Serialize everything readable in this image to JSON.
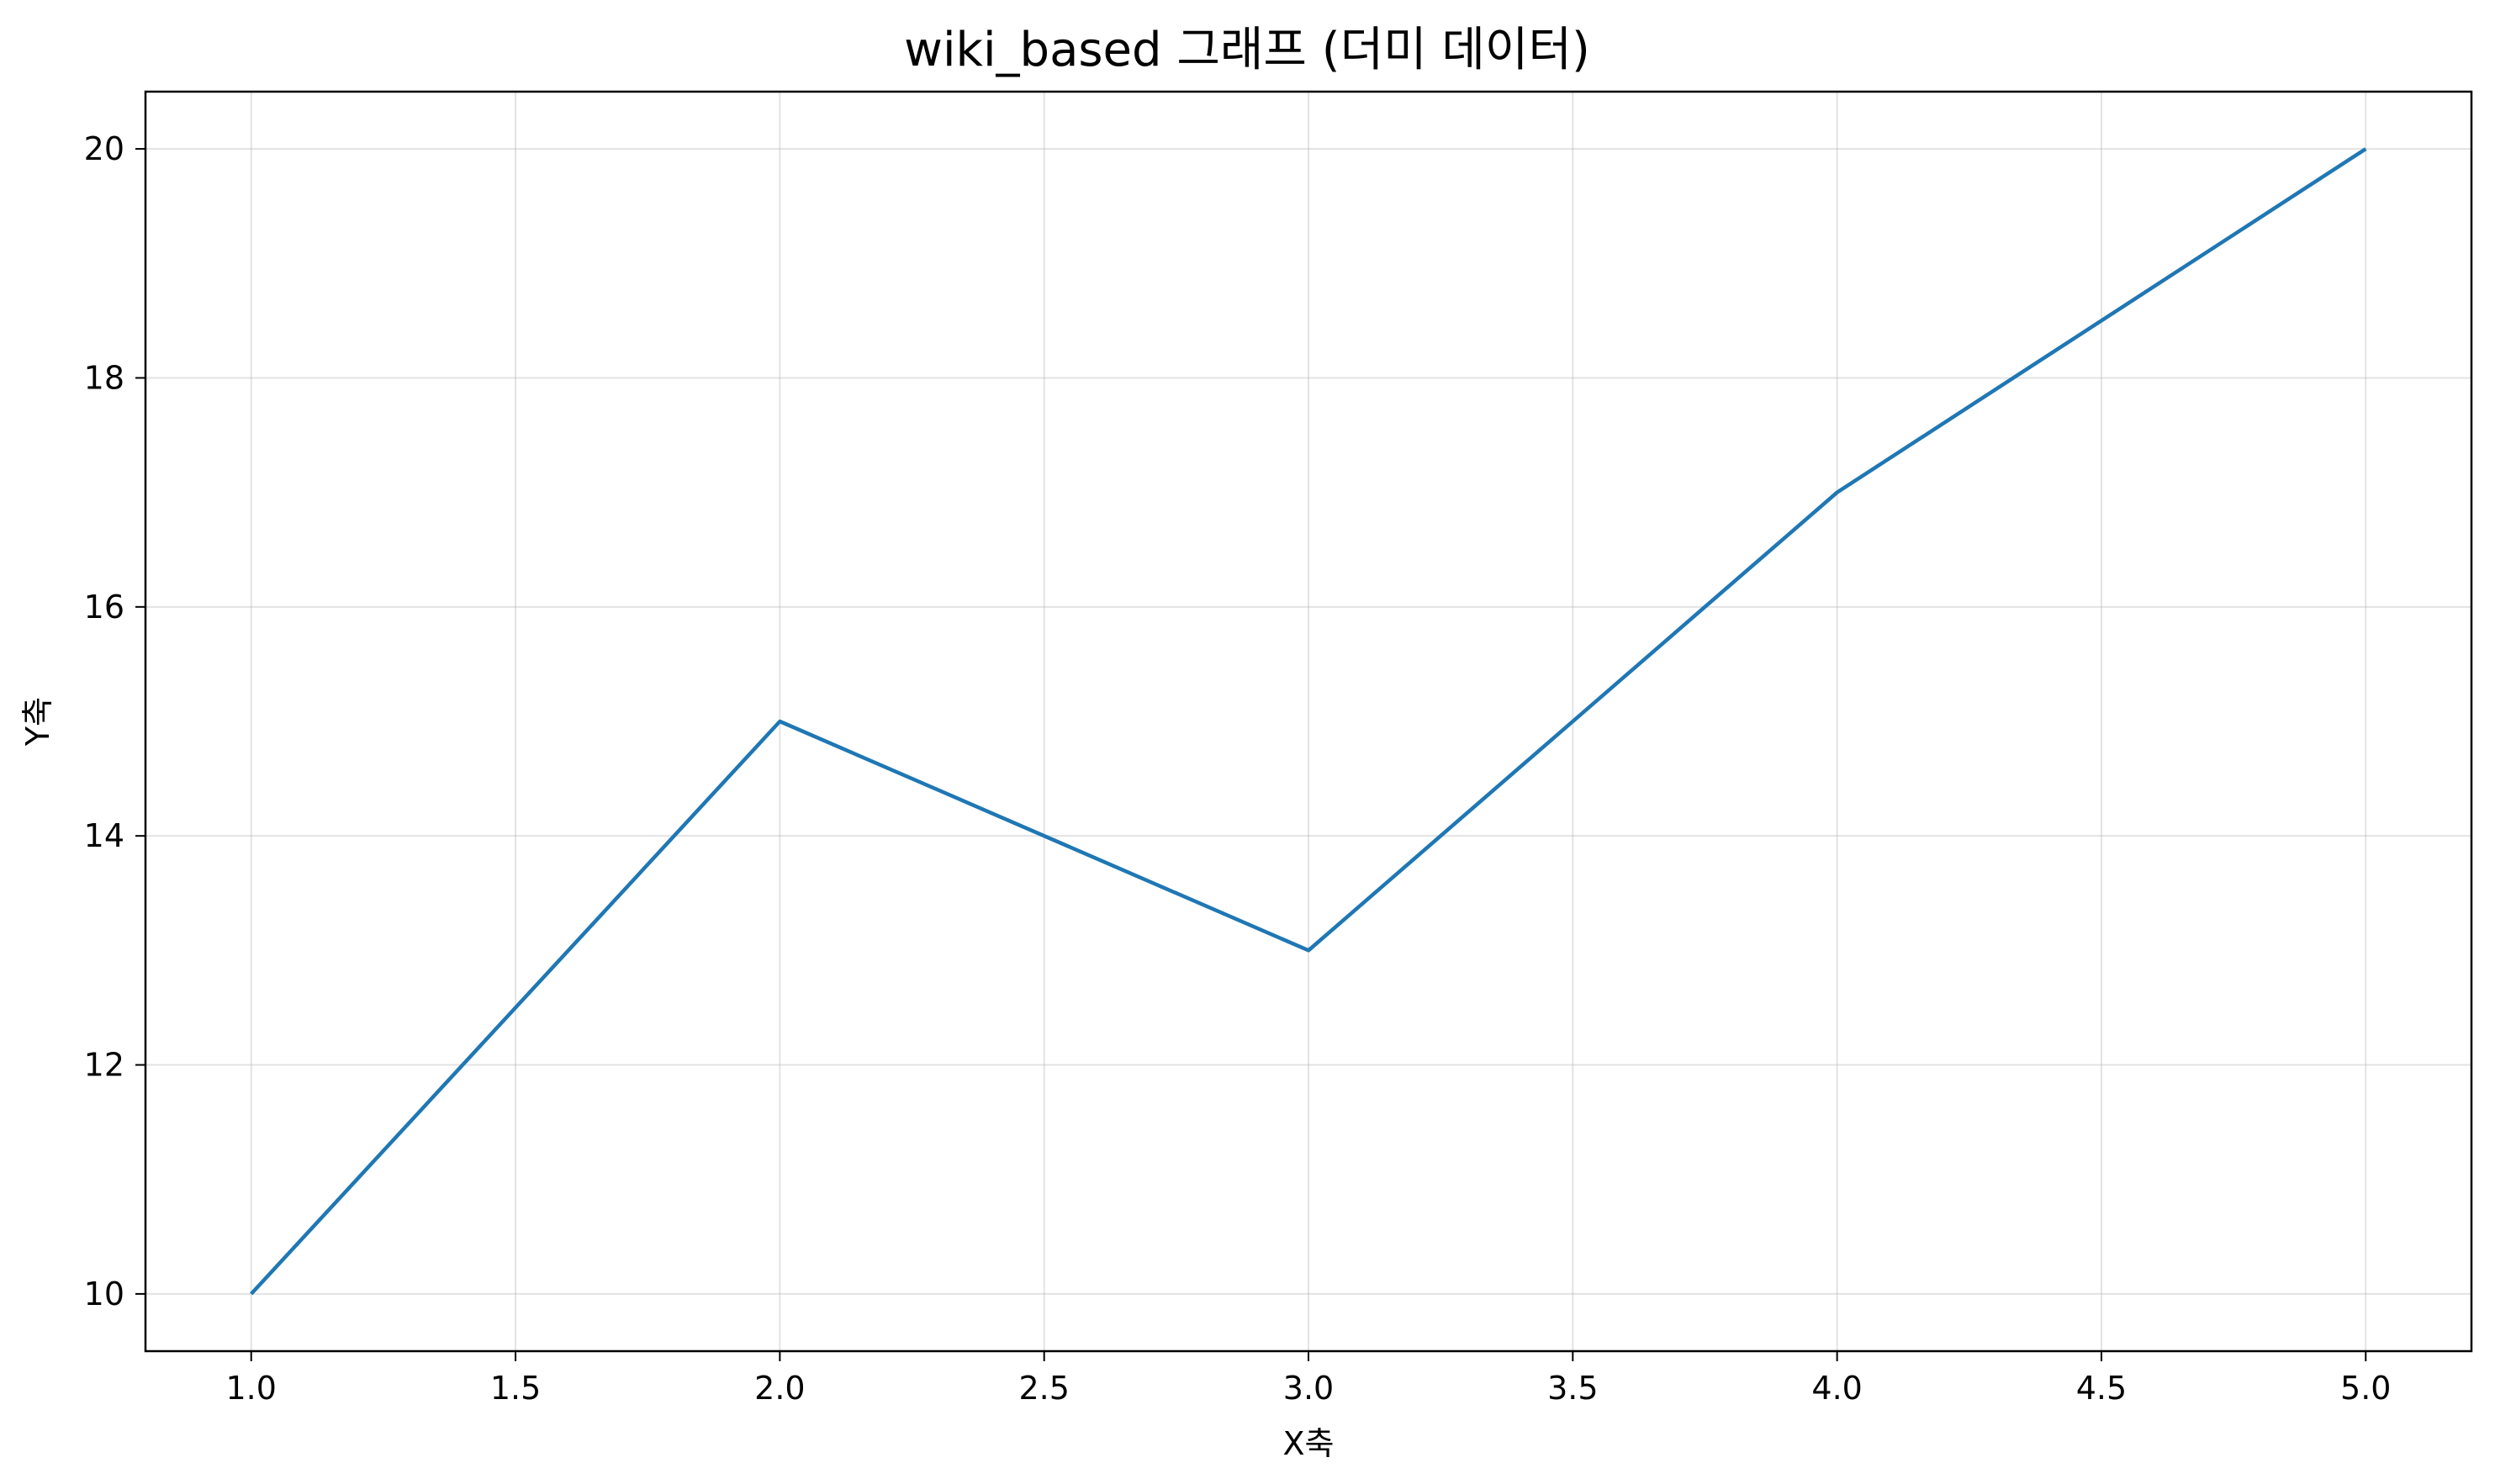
{
  "chart_data": {
    "type": "line",
    "title": "wiki_based 그래프 (더미 데이터)",
    "xlabel": "X축",
    "ylabel": "Y축",
    "xlim": [
      0.8,
      5.2
    ],
    "ylim": [
      9.5,
      20.5
    ],
    "grid": true,
    "x": [
      1.0,
      2.0,
      3.0,
      4.0,
      5.0
    ],
    "series": [
      {
        "values": [
          10,
          15,
          13,
          17,
          20
        ],
        "color": "#1f77b4"
      }
    ],
    "x_ticks": [
      1.0,
      1.5,
      2.0,
      2.5,
      3.0,
      3.5,
      4.0,
      4.5,
      5.0
    ],
    "x_tick_labels": [
      "1.0",
      "1.5",
      "2.0",
      "2.5",
      "3.0",
      "3.5",
      "4.0",
      "4.5",
      "5.0"
    ],
    "y_ticks": [
      10,
      12,
      14,
      16,
      18,
      20
    ],
    "y_tick_labels": [
      "10",
      "12",
      "14",
      "16",
      "18",
      "20"
    ]
  }
}
